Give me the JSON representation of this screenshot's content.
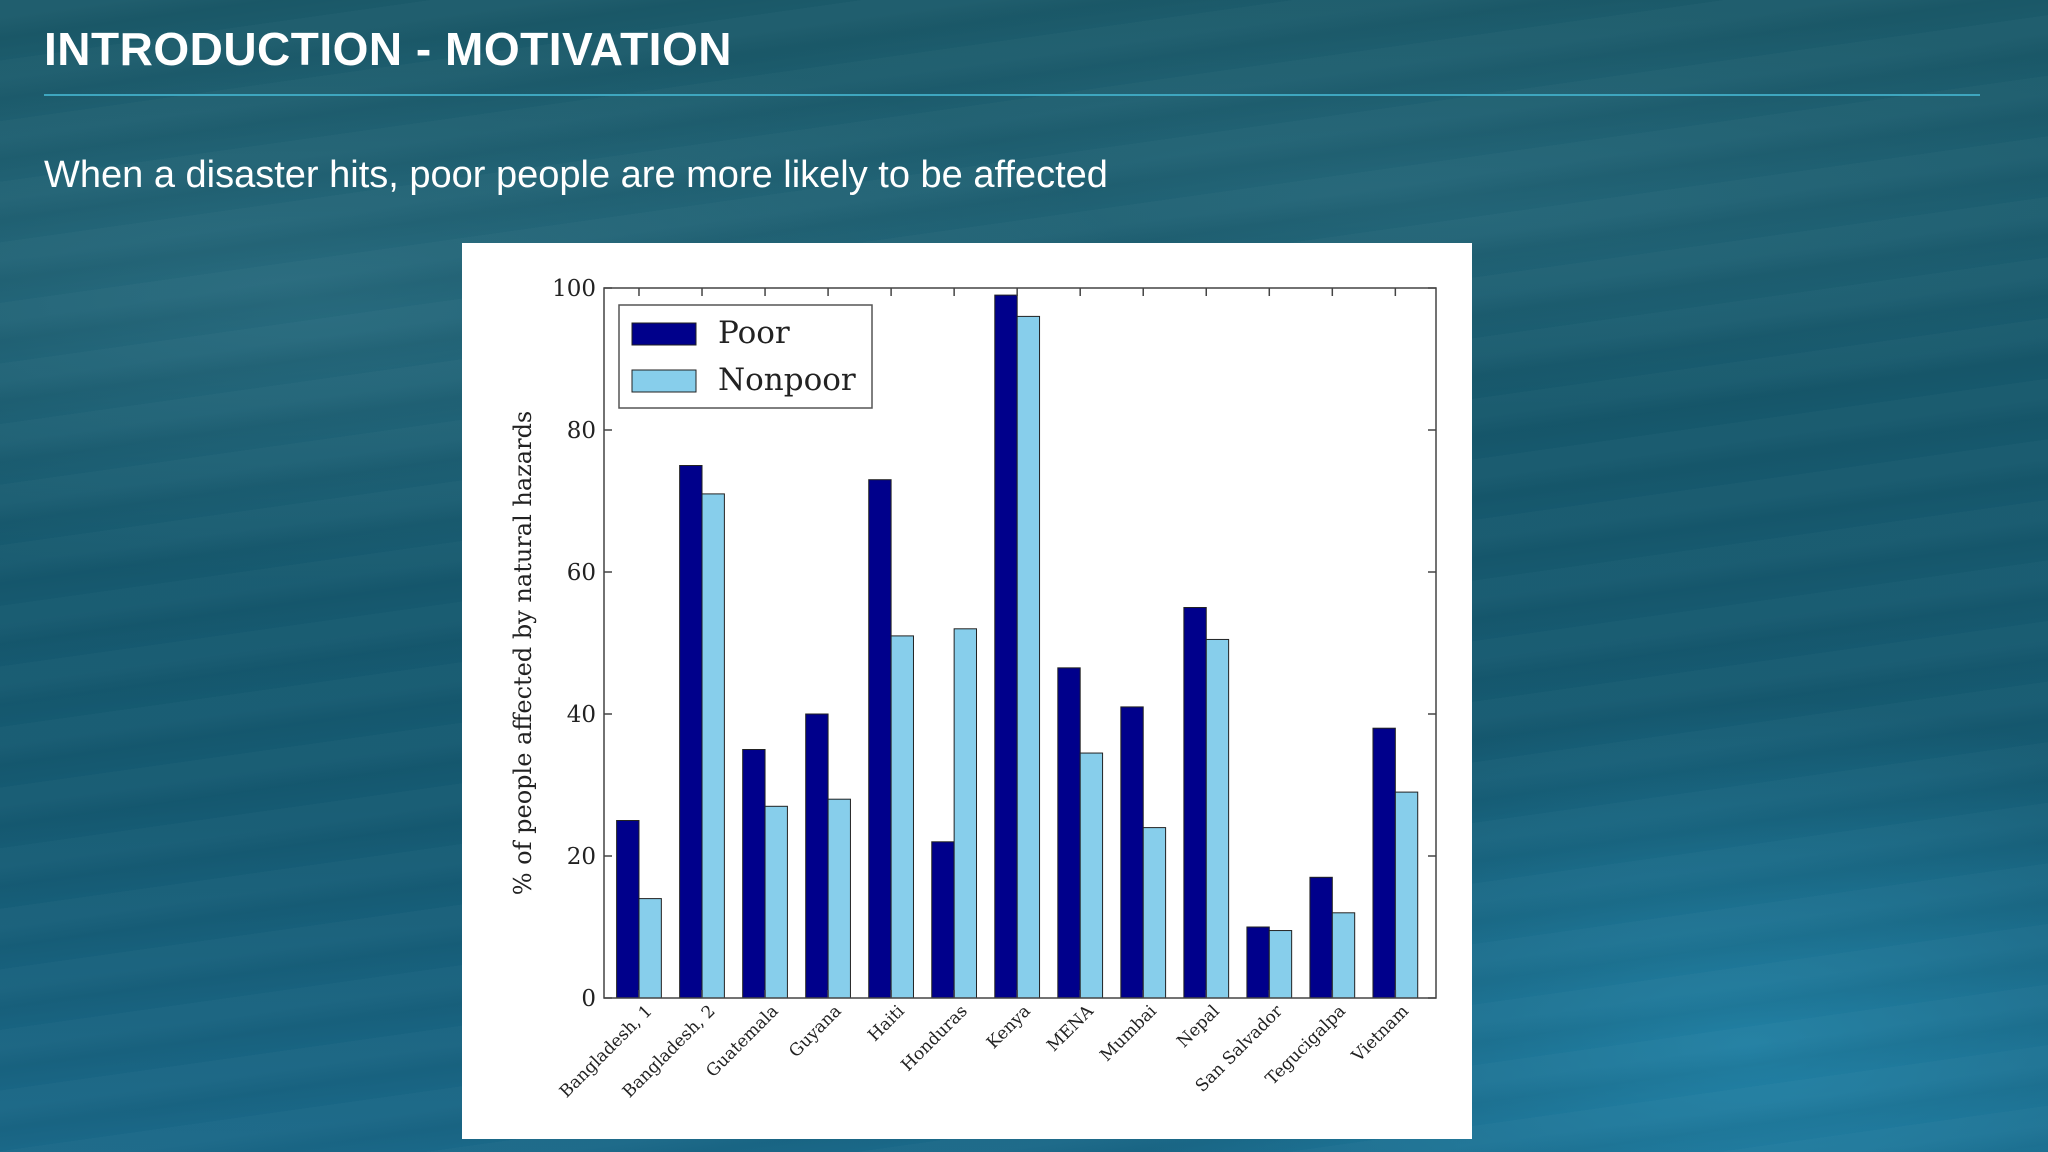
{
  "slide": {
    "title": "INTRODUCTION - MOTIVATION",
    "subtitle": "When a disaster hits, poor people are more likely to be affected"
  },
  "colors": {
    "poor": "#00008b",
    "nonpoor": "#87ceeb",
    "title_rule": "#3ea6bf"
  },
  "chart_data": {
    "type": "bar",
    "categories": [
      "Bangladesh, 1",
      "Bangladesh, 2",
      "Guatemala",
      "Guyana",
      "Haiti",
      "Honduras",
      "Kenya",
      "MENA",
      "Mumbai",
      "Nepal",
      "San Salvador",
      "Tegucigalpa",
      "Vietnam"
    ],
    "series": [
      {
        "name": "Poor",
        "color": "#00008b",
        "values": [
          25,
          75,
          35,
          40,
          73,
          22,
          99,
          46.5,
          41,
          55,
          10,
          17,
          38
        ]
      },
      {
        "name": "Nonpoor",
        "color": "#87ceeb",
        "values": [
          14,
          71,
          27,
          28,
          51,
          52,
          96,
          34.5,
          24,
          50.5,
          9.5,
          12,
          29
        ]
      }
    ],
    "ylabel": "% of people affected by natural hazards",
    "xlabel": "",
    "ylim": [
      0,
      100
    ],
    "yticks": [
      "0",
      "20",
      "40",
      "60",
      "80",
      "100"
    ],
    "legend": "top-left",
    "grid": false
  }
}
